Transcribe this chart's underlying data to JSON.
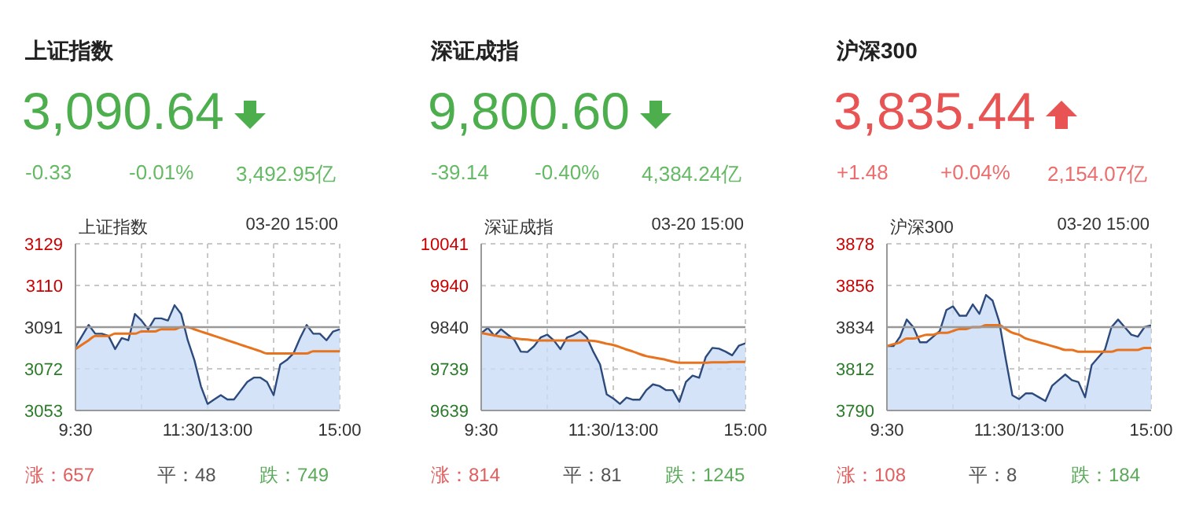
{
  "chart_data": [
    {
      "type": "area",
      "title": "上证指数",
      "annotations": [
        "3,090.64",
        "-0.33",
        "-0.01%",
        "3,492.95亿",
        "上证指数",
        "03-20 15:00",
        "涨：657",
        "平：48",
        "跌：749"
      ],
      "categories": [
        "9:30",
        null,
        null,
        null,
        null,
        null,
        null,
        null,
        null,
        null,
        null,
        null,
        null,
        null,
        null,
        null,
        null,
        null,
        null,
        null,
        "11:30/13:00",
        null,
        null,
        null,
        null,
        null,
        null,
        null,
        null,
        null,
        null,
        null,
        null,
        null,
        null,
        null,
        null,
        null,
        null,
        null,
        "15:00"
      ],
      "ylim": [
        3053,
        3129
      ],
      "yticks": [
        3053,
        3072,
        3091,
        3110,
        3129
      ],
      "grid": true,
      "ref_lines": [
        {
          "axis": "y",
          "value": 3091,
          "color": "#999999"
        }
      ],
      "series": [
        {
          "color": "#2c4a7c",
          "values": [
            3082,
            3087,
            3092,
            3088,
            3088,
            3087,
            3081,
            3086,
            3085,
            3097,
            3094,
            3090,
            3095,
            3095,
            3094,
            3101,
            3097,
            3085,
            3076,
            3064,
            3056,
            3058,
            3060,
            3058,
            3058,
            3062,
            3066,
            3068,
            3068,
            3066,
            3060,
            3074,
            3076,
            3079,
            3086,
            3092,
            3088,
            3088,
            3085,
            3089,
            3090
          ]
        },
        {
          "type": "line",
          "color": "#e8731e",
          "values": [
            3081,
            3083,
            3085,
            3087,
            3087,
            3087,
            3088,
            3088,
            3088,
            3088,
            3089,
            3089,
            3089,
            3090,
            3090,
            3090,
            3091,
            3091,
            3090,
            3089,
            3088,
            3087,
            3086,
            3085,
            3084,
            3083,
            3082,
            3081,
            3080,
            3079,
            3079,
            3079,
            3079,
            3079,
            3079,
            3079,
            3080,
            3080,
            3080,
            3080,
            3080
          ]
        }
      ]
    },
    {
      "type": "area",
      "title": "深证成指",
      "annotations": [
        "9,800.60",
        "-39.14",
        "-0.40%",
        "4,384.24亿",
        "深证成指",
        "03-20 15:00",
        "涨：814",
        "平：81",
        "跌：1245"
      ],
      "categories": [
        "9:30",
        null,
        null,
        null,
        null,
        null,
        null,
        null,
        null,
        null,
        null,
        null,
        null,
        null,
        null,
        null,
        null,
        null,
        null,
        null,
        "11:30/13:00",
        null,
        null,
        null,
        null,
        null,
        null,
        null,
        null,
        null,
        null,
        null,
        null,
        null,
        null,
        null,
        null,
        null,
        null,
        null,
        "15:00"
      ],
      "ylim": [
        9639,
        10041
      ],
      "yticks": [
        9639,
        9739,
        9840,
        9940,
        10041
      ],
      "grid": true,
      "ref_lines": [
        {
          "axis": "y",
          "value": 9840,
          "color": "#999999"
        }
      ],
      "series": [
        {
          "color": "#2c4a7c",
          "values": [
            9825,
            9838,
            9819,
            9835,
            9822,
            9810,
            9781,
            9780,
            9794,
            9815,
            9822,
            9808,
            9787,
            9815,
            9821,
            9830,
            9815,
            9780,
            9750,
            9678,
            9668,
            9655,
            9670,
            9665,
            9665,
            9688,
            9702,
            9698,
            9688,
            9688,
            9660,
            9708,
            9723,
            9718,
            9768,
            9790,
            9788,
            9781,
            9772,
            9795,
            9801
          ]
        },
        {
          "type": "line",
          "color": "#e8731e",
          "values": [
            9826,
            9823,
            9820,
            9817,
            9815,
            9813,
            9811,
            9810,
            9808,
            9808,
            9808,
            9808,
            9808,
            9808,
            9808,
            9808,
            9808,
            9807,
            9804,
            9800,
            9797,
            9792,
            9786,
            9781,
            9775,
            9770,
            9767,
            9764,
            9761,
            9757,
            9754,
            9754,
            9754,
            9754,
            9754,
            9755,
            9755,
            9755,
            9756,
            9756,
            9756
          ]
        }
      ]
    },
    {
      "type": "area",
      "title": "沪深300",
      "annotations": [
        "3,835.44",
        "+1.48",
        "+0.04%",
        "2,154.07亿",
        "沪深300",
        "03-20 15:00",
        "涨：108",
        "平：8",
        "跌：184"
      ],
      "categories": [
        "9:30",
        null,
        null,
        null,
        null,
        null,
        null,
        null,
        null,
        null,
        null,
        null,
        null,
        null,
        null,
        null,
        null,
        null,
        null,
        null,
        "11:30/13:00",
        null,
        null,
        null,
        null,
        null,
        null,
        null,
        null,
        null,
        null,
        null,
        null,
        null,
        null,
        null,
        null,
        null,
        null,
        null,
        "15:00"
      ],
      "ylim": [
        3790,
        3878
      ],
      "yticks": [
        3790,
        3812,
        3834,
        3856,
        3878
      ],
      "grid": true,
      "ref_lines": [
        {
          "axis": "y",
          "value": 3834,
          "color": "#999999"
        }
      ],
      "series": [
        {
          "color": "#2c4a7c",
          "values": [
            3824,
            3824,
            3829,
            3838,
            3834,
            3826,
            3826,
            3829,
            3832,
            3843,
            3845,
            3840,
            3840,
            3846,
            3841,
            3851,
            3848,
            3837,
            3817,
            3798,
            3796,
            3799,
            3799,
            3797,
            3795,
            3803,
            3806,
            3809,
            3806,
            3805,
            3797,
            3814,
            3818,
            3822,
            3834,
            3838,
            3834,
            3830,
            3829,
            3834,
            3835
          ]
        },
        {
          "type": "line",
          "color": "#e8731e",
          "values": [
            3824,
            3825,
            3826,
            3828,
            3828,
            3829,
            3830,
            3830,
            3831,
            3831,
            3832,
            3833,
            3833,
            3834,
            3834,
            3835,
            3835,
            3835,
            3833,
            3831,
            3830,
            3828,
            3827,
            3826,
            3825,
            3824,
            3823,
            3822,
            3822,
            3821,
            3821,
            3821,
            3821,
            3821,
            3821,
            3822,
            3822,
            3822,
            3822,
            3823,
            3823
          ]
        }
      ]
    }
  ]
}
